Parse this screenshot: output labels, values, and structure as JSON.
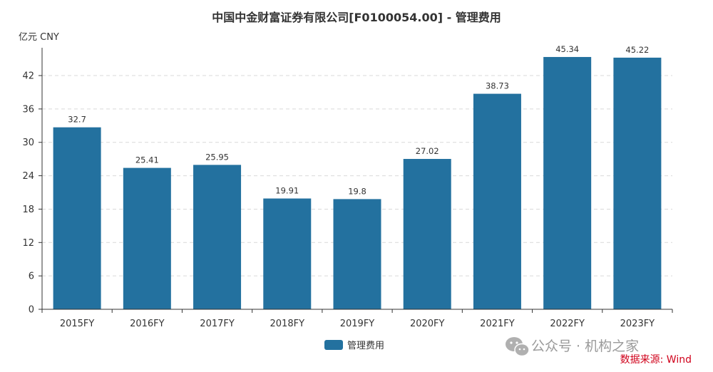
{
  "chart_data": {
    "type": "bar",
    "title": "中国中金财富证券有限公司[F0100054.00] - 管理费用",
    "ylabel": "亿元  CNY",
    "xlabel": "",
    "categories": [
      "2015FY",
      "2016FY",
      "2017FY",
      "2018FY",
      "2019FY",
      "2020FY",
      "2021FY",
      "2022FY",
      "2023FY"
    ],
    "series": [
      {
        "name": "管理费用",
        "values": [
          32.7,
          25.41,
          25.95,
          19.91,
          19.8,
          27.02,
          38.73,
          45.34,
          45.22
        ],
        "labels": [
          "32.7",
          "25.41",
          "25.95",
          "19.91",
          "19.8",
          "27.02",
          "38.73",
          "45.34",
          "45.22"
        ]
      }
    ],
    "ylim": [
      0,
      47
    ],
    "yticks": [
      0,
      6,
      12,
      18,
      24,
      30,
      36,
      42
    ],
    "grid": true,
    "legend": "bottom-center",
    "bar_color": "#23719f"
  },
  "watermark": "公众号 · 机构之家",
  "source": "数据来源: Wind"
}
